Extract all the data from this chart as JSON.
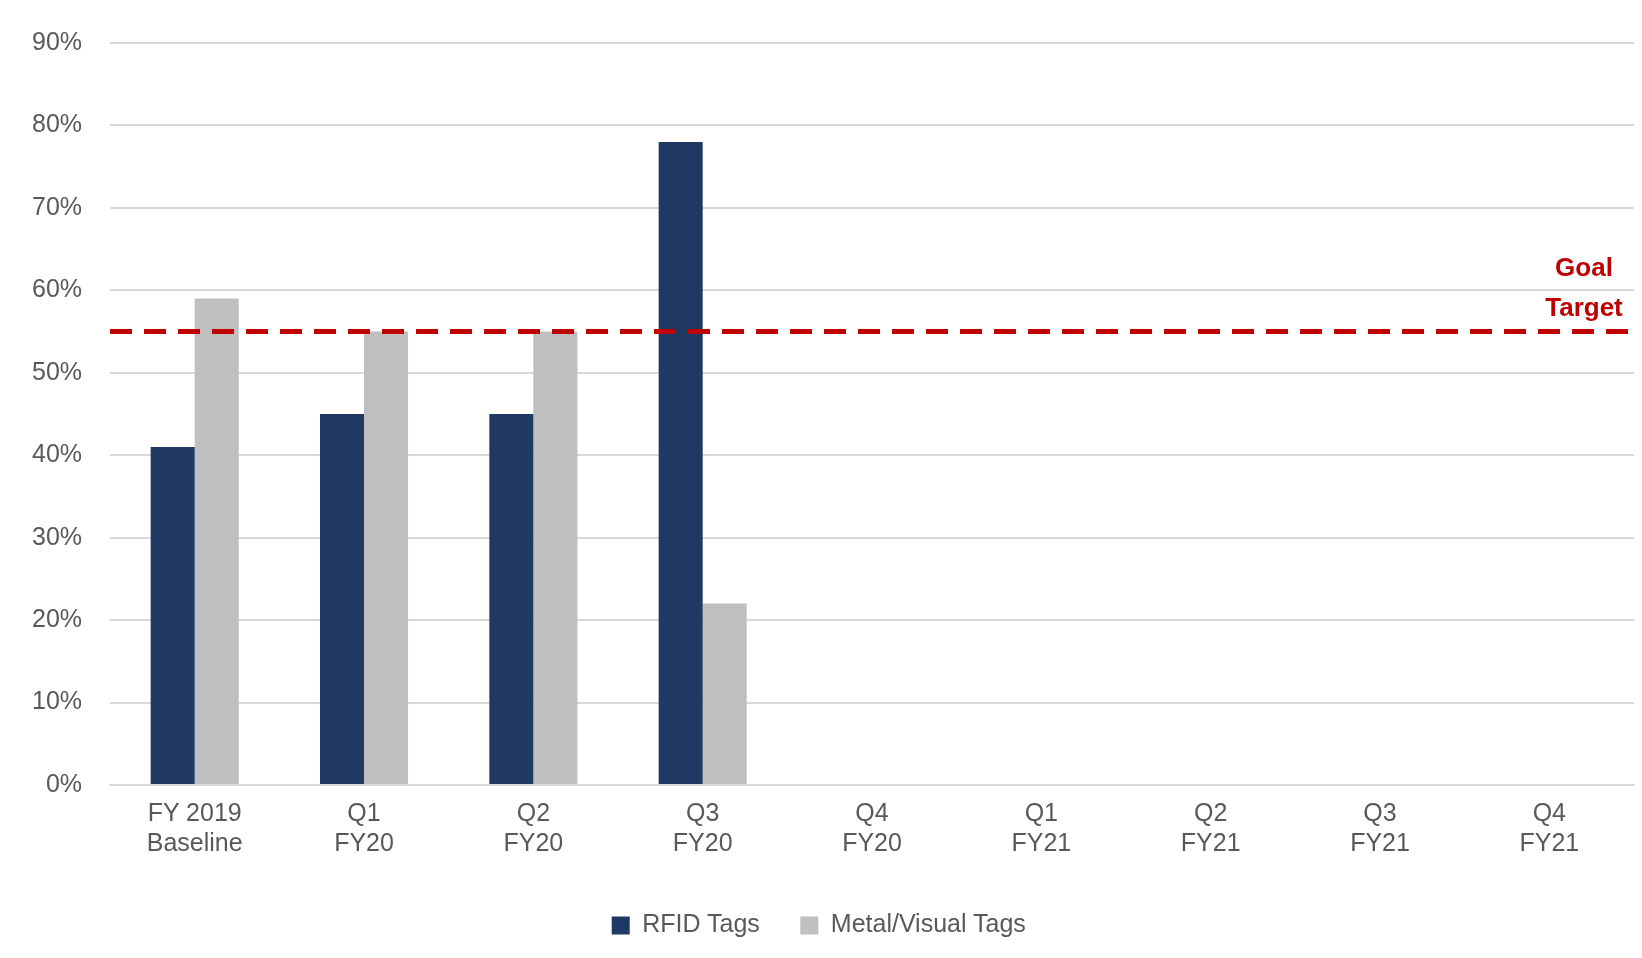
{
  "chart_data": {
    "type": "bar",
    "categories": [
      "FY 2019\nBaseline",
      "Q1\nFY20",
      "Q2\nFY20",
      "Q3\nFY20",
      "Q4\nFY20",
      "Q1\nFY21",
      "Q2\nFY21",
      "Q3\nFY21",
      "Q4\nFY21"
    ],
    "series": [
      {
        "name": "RFID Tags",
        "color": "#1f3864",
        "values": [
          41,
          45,
          45,
          78,
          null,
          null,
          null,
          null,
          null
        ]
      },
      {
        "name": "Metal/Visual Tags",
        "color": "#bfbfbf",
        "values": [
          59,
          55,
          55,
          22,
          null,
          null,
          null,
          null,
          null
        ]
      }
    ],
    "ylim": [
      0,
      90
    ],
    "yticks": [
      {
        "value": 0,
        "label": "0%"
      },
      {
        "value": 10,
        "label": "10%"
      },
      {
        "value": 20,
        "label": "20%"
      },
      {
        "value": 30,
        "label": "30%"
      },
      {
        "value": 40,
        "label": "40%"
      },
      {
        "value": 50,
        "label": "50%"
      },
      {
        "value": 60,
        "label": "60%"
      },
      {
        "value": 70,
        "label": "70%"
      },
      {
        "value": 80,
        "label": "80%"
      },
      {
        "value": 90,
        "label": "90%"
      }
    ],
    "ref_lines": [
      {
        "axis": "y",
        "value": 55,
        "label": "Goal\nTarget",
        "color": "#c00000",
        "line_style": "dashed"
      }
    ],
    "grid": "y",
    "legend": "bottom"
  }
}
